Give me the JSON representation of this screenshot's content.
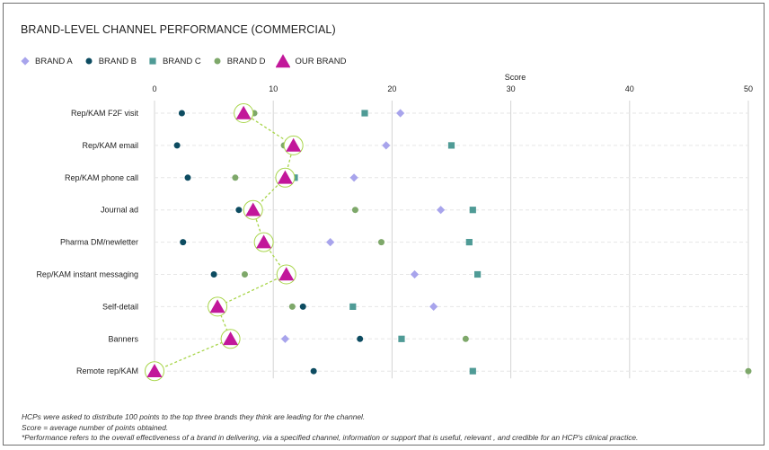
{
  "chart_data": {
    "type": "scatter",
    "title": "BRAND-LEVEL CHANNEL PERFORMANCE (COMMERCIAL)",
    "axis_title": "Score",
    "x_ticks": [
      0,
      10,
      20,
      30,
      40,
      50
    ],
    "xlim": [
      0,
      50
    ],
    "grid": "vertical",
    "legend_position": "top-left",
    "categories": [
      "Rep/KAM F2F visit",
      "Rep/KAM email",
      "Rep/KAM phone call",
      "Journal ad",
      "Pharma DM/newletter",
      "Rep/KAM instant messaging",
      "Self-detail",
      "Banners",
      "Remote rep/KAM"
    ],
    "series": [
      {
        "name": "BRAND A",
        "marker": "diamond",
        "color": "#a8a4ec",
        "values": [
          20.7,
          19.5,
          16.8,
          24.1,
          14.8,
          21.9,
          23.5,
          11.0,
          null
        ]
      },
      {
        "name": "BRAND B",
        "marker": "circle",
        "color": "#0d4c61",
        "values": [
          2.3,
          1.9,
          2.8,
          7.1,
          2.4,
          5.0,
          12.5,
          17.3,
          13.4
        ]
      },
      {
        "name": "BRAND C",
        "marker": "square",
        "color": "#4f9b96",
        "values": [
          17.7,
          25.0,
          11.8,
          26.8,
          26.5,
          27.2,
          16.7,
          20.8,
          26.8
        ]
      },
      {
        "name": "BRAND D",
        "marker": "circle",
        "color": "#7ea86a",
        "values": [
          8.4,
          10.9,
          6.8,
          16.9,
          19.1,
          7.6,
          11.6,
          26.2,
          50.0
        ]
      },
      {
        "name": "OUR BRAND",
        "marker": "triangle",
        "color": "#c2179a",
        "values": [
          7.5,
          11.7,
          11.0,
          8.3,
          9.2,
          11.1,
          5.3,
          6.4,
          0.0
        ]
      }
    ]
  },
  "footnotes": [
    "HCPs were asked to distribute 100 points to the top three brands they think are leading for the channel.",
    "Score = average number of points obtained.",
    "*Performance refers to the overall effectiveness of a brand in delivering, via a specified channel, information or support that is useful, relevant , and credible for an HCP's clinical practice."
  ]
}
